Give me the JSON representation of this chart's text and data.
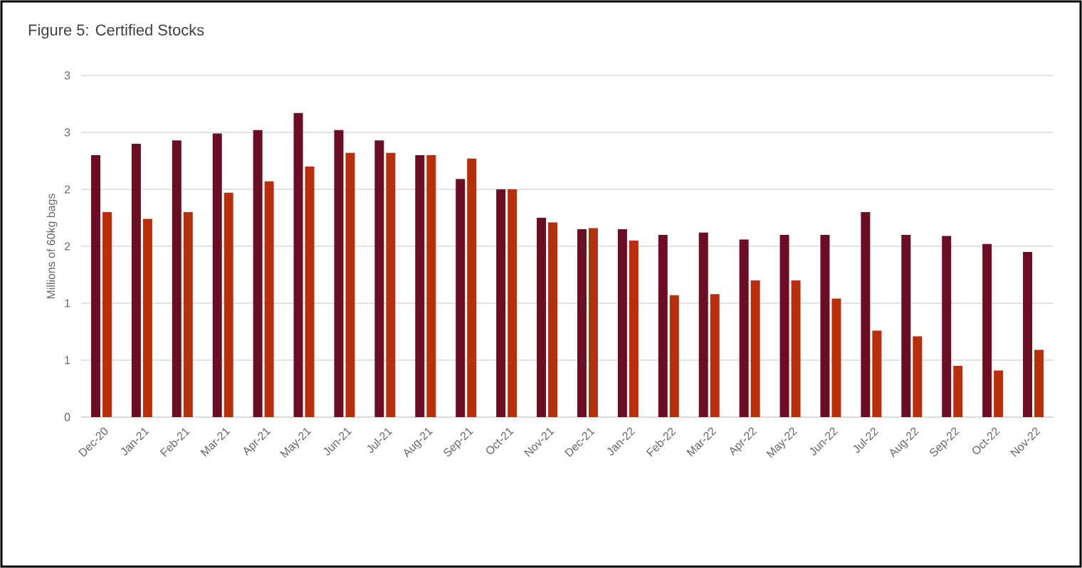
{
  "chart_data": {
    "type": "bar",
    "title": "Figure 5: Certified Stocks",
    "ylabel": "Millions of 60kg bags",
    "categories": [
      "Dec-20",
      "Jan-21",
      "Feb-21",
      "Mar-21",
      "Apr-21",
      "May-21",
      "Jun-21",
      "Jul-21",
      "Aug-21",
      "Sep-21",
      "Oct-21",
      "Nov-21",
      "Dec-21",
      "Jan-22",
      "Feb-22",
      "Mar-22",
      "Apr-22",
      "May-22",
      "Jun-22",
      "Jul-22",
      "Aug-22",
      "Sep-22",
      "Oct-22",
      "Nov-22"
    ],
    "series": [
      {
        "color": "#6b0e23",
        "values": [
          2.3,
          2.4,
          2.43,
          2.49,
          2.52,
          2.67,
          2.52,
          2.43,
          2.3,
          2.09,
          2.0,
          1.75,
          1.65,
          1.65,
          1.6,
          1.62,
          1.56,
          1.6,
          1.6,
          1.8,
          1.6,
          1.59,
          1.52,
          1.45
        ]
      },
      {
        "color": "#b5300b",
        "values": [
          1.8,
          1.74,
          1.8,
          1.97,
          2.07,
          2.2,
          2.32,
          2.32,
          2.3,
          2.27,
          2.0,
          1.71,
          1.66,
          1.55,
          1.07,
          1.08,
          1.2,
          1.2,
          1.04,
          0.76,
          0.71,
          0.45,
          0.41,
          0.59
        ]
      }
    ],
    "ylim": [
      0,
      3
    ],
    "yticks": [
      0,
      {
        "value": 0.5,
        "label": "1"
      },
      1,
      {
        "value": 1.5,
        "label": "2"
      },
      2,
      {
        "value": 2.5,
        "label": "3"
      },
      3
    ],
    "grid": "y"
  }
}
